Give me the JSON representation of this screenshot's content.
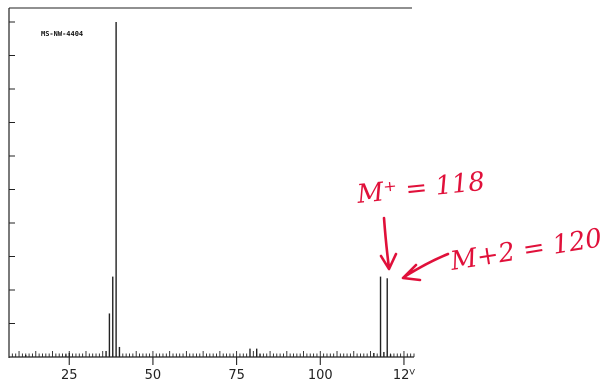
{
  "chart_data": {
    "type": "bar",
    "title": "",
    "spectrum_code": "MS-NW-4404",
    "xlabel": "",
    "ylabel": "",
    "xlim": [
      7,
      128
    ],
    "ylim": [
      0,
      100
    ],
    "x_ticks": [
      25,
      50,
      75,
      100,
      125
    ],
    "x_tick_labels": [
      "25",
      "50",
      "75",
      "100",
      "12ⱽ"
    ],
    "grid": false,
    "peaks": [
      {
        "x": 12,
        "y": 0.6
      },
      {
        "x": 24,
        "y": 0.8
      },
      {
        "x": 25,
        "y": 1.2
      },
      {
        "x": 36,
        "y": 1.8
      },
      {
        "x": 37,
        "y": 13
      },
      {
        "x": 38,
        "y": 24
      },
      {
        "x": 39,
        "y": 100
      },
      {
        "x": 40,
        "y": 3
      },
      {
        "x": 79,
        "y": 2.5
      },
      {
        "x": 81,
        "y": 2.5
      },
      {
        "x": 82,
        "y": 1
      },
      {
        "x": 116,
        "y": 1.2
      },
      {
        "x": 118,
        "y": 24
      },
      {
        "x": 119,
        "y": 1.5
      },
      {
        "x": 120,
        "y": 23.5
      },
      {
        "x": 121,
        "y": 0.8
      }
    ],
    "annotations": [
      {
        "text": "M⁺ = 118"
      },
      {
        "text": "M+2 = 120"
      }
    ],
    "colors": {
      "axis": "#222222",
      "bars": "#222222",
      "ink": "#e0103a"
    }
  }
}
